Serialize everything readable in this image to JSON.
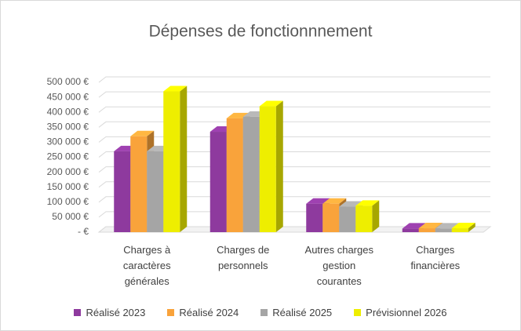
{
  "chart_data": {
    "type": "bar3d",
    "title": "Dépenses de fonctionnnement",
    "categories": [
      "Charges à caractères générales",
      "Charges de personnels",
      "Autres charges gestion courantes",
      "Charges financières"
    ],
    "series": [
      {
        "name": "Réalisé 2023",
        "color": "#8e3a9e",
        "values": [
          270000,
          335000,
          95000,
          12000
        ]
      },
      {
        "name": "Réalisé 2024",
        "color": "#f9a33b",
        "values": [
          320000,
          380000,
          95000,
          13000
        ]
      },
      {
        "name": "Réalisé 2025",
        "color": "#a5a5a5",
        "values": [
          270000,
          385000,
          85000,
          12000
        ]
      },
      {
        "name": "Prévisionnel 2026",
        "color": "#eeee00",
        "values": [
          470000,
          420000,
          88000,
          13000
        ]
      }
    ],
    "ylim": [
      0,
      500000
    ],
    "yticks": [
      {
        "value": 0,
        "label": "-  €"
      },
      {
        "value": 50000,
        "label": "50 000 €"
      },
      {
        "value": 100000,
        "label": "100 000 €"
      },
      {
        "value": 150000,
        "label": "150 000 €"
      },
      {
        "value": 200000,
        "label": "200 000 €"
      },
      {
        "value": 250000,
        "label": "250 000 €"
      },
      {
        "value": 300000,
        "label": "300 000 €"
      },
      {
        "value": 350000,
        "label": "350 000 €"
      },
      {
        "value": 400000,
        "label": "400 000 €"
      },
      {
        "value": 450000,
        "label": "450 000 €"
      },
      {
        "value": 500000,
        "label": "500 000 €"
      }
    ],
    "grid": true
  }
}
